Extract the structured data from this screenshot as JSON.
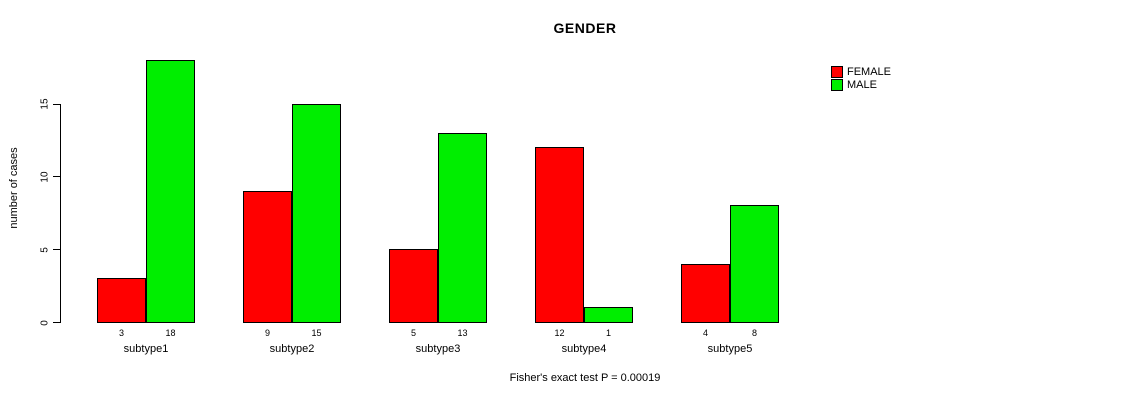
{
  "chart_data": {
    "type": "bar",
    "title": "GENDER",
    "ylabel": "number of cases",
    "xlabel": "",
    "caption": "Fisher's exact test P = 0.00019",
    "categories": [
      "subtype1",
      "subtype2",
      "subtype3",
      "subtype4",
      "subtype5"
    ],
    "series": [
      {
        "name": "FEMALE",
        "color": "#ff0000",
        "values": [
          3,
          9,
          5,
          12,
          4
        ]
      },
      {
        "name": "MALE",
        "color": "#00ee00",
        "values": [
          18,
          15,
          13,
          1,
          8
        ]
      }
    ],
    "y_ticks": [
      0,
      5,
      10,
      15
    ],
    "ylim": [
      0,
      18
    ],
    "grid": false,
    "legend_position": "top-right",
    "bar_value_labels": true,
    "text_color": "#000000",
    "background_color": "#ffffff"
  }
}
